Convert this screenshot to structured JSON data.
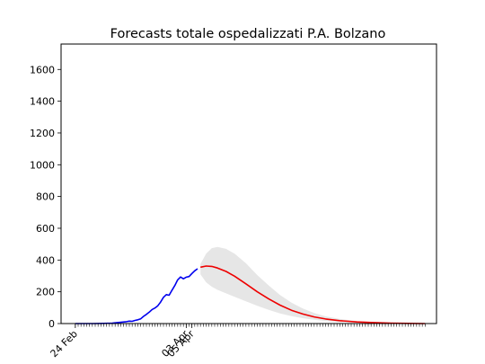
{
  "chart_data": {
    "type": "line",
    "title": "Forecasts totale ospedalizzati P.A. Bolzano",
    "xlabel": "",
    "ylabel": "",
    "x_range": [
      "2020-02-19",
      "2020-06-30"
    ],
    "ylim": [
      0,
      1760
    ],
    "yticks": [
      0,
      200,
      400,
      600,
      800,
      1000,
      1200,
      1400,
      1600
    ],
    "xtick_labels": [
      {
        "date": "2020-02-24",
        "label": "24 Feb"
      },
      {
        "date": "2020-04-03",
        "label": "03 Apr"
      },
      {
        "date": "2020-04-05",
        "label": "05 Apr"
      }
    ],
    "minor_tick_range": [
      "2020-02-24",
      "2020-06-26"
    ],
    "grid": false,
    "legend": "none",
    "colors": {
      "observed": "#0000ee",
      "forecast": "#ee0000",
      "band": "#e6e6e6"
    },
    "series": [
      {
        "role": "observed",
        "points": [
          [
            "2020-02-24",
            0
          ],
          [
            "2020-03-01",
            0
          ],
          [
            "2020-03-05",
            1
          ],
          [
            "2020-03-08",
            3
          ],
          [
            "2020-03-11",
            8
          ],
          [
            "2020-03-13",
            12
          ],
          [
            "2020-03-14",
            15
          ],
          [
            "2020-03-15",
            14
          ],
          [
            "2020-03-16",
            20
          ],
          [
            "2020-03-17",
            24
          ],
          [
            "2020-03-18",
            30
          ],
          [
            "2020-03-19",
            45
          ],
          [
            "2020-03-20",
            58
          ],
          [
            "2020-03-21",
            72
          ],
          [
            "2020-03-22",
            88
          ],
          [
            "2020-03-23",
            98
          ],
          [
            "2020-03-24",
            112
          ],
          [
            "2020-03-25",
            135
          ],
          [
            "2020-03-26",
            165
          ],
          [
            "2020-03-27",
            182
          ],
          [
            "2020-03-28",
            178
          ],
          [
            "2020-03-29",
            210
          ],
          [
            "2020-03-30",
            240
          ],
          [
            "2020-03-31",
            275
          ],
          [
            "2020-04-01",
            293
          ],
          [
            "2020-04-02",
            282
          ],
          [
            "2020-04-03",
            292
          ],
          [
            "2020-04-04",
            296
          ],
          [
            "2020-04-05",
            315
          ],
          [
            "2020-04-06",
            332
          ],
          [
            "2020-04-07",
            345
          ]
        ]
      },
      {
        "role": "forecast",
        "points": [
          [
            "2020-04-08",
            355
          ],
          [
            "2020-04-10",
            362
          ],
          [
            "2020-04-12",
            360
          ],
          [
            "2020-04-14",
            350
          ],
          [
            "2020-04-17",
            328
          ],
          [
            "2020-04-20",
            298
          ],
          [
            "2020-04-24",
            250
          ],
          [
            "2020-04-28",
            200
          ],
          [
            "2020-05-02",
            155
          ],
          [
            "2020-05-06",
            116
          ],
          [
            "2020-05-10",
            84
          ],
          [
            "2020-05-14",
            60
          ],
          [
            "2020-05-18",
            42
          ],
          [
            "2020-05-22",
            29
          ],
          [
            "2020-05-27",
            18
          ],
          [
            "2020-06-02",
            10
          ],
          [
            "2020-06-08",
            6
          ],
          [
            "2020-06-14",
            3
          ],
          [
            "2020-06-20",
            1
          ],
          [
            "2020-06-26",
            0
          ]
        ]
      }
    ],
    "band": {
      "upper": [
        [
          "2020-04-08",
          375
        ],
        [
          "2020-04-10",
          440
        ],
        [
          "2020-04-12",
          475
        ],
        [
          "2020-04-14",
          482
        ],
        [
          "2020-04-17",
          470
        ],
        [
          "2020-04-20",
          440
        ],
        [
          "2020-04-24",
          380
        ],
        [
          "2020-04-28",
          305
        ],
        [
          "2020-05-02",
          240
        ],
        [
          "2020-05-06",
          180
        ],
        [
          "2020-05-10",
          132
        ],
        [
          "2020-05-14",
          95
        ],
        [
          "2020-05-18",
          66
        ],
        [
          "2020-05-22",
          45
        ],
        [
          "2020-05-27",
          29
        ],
        [
          "2020-06-02",
          16
        ],
        [
          "2020-06-08",
          9
        ],
        [
          "2020-06-14",
          4
        ],
        [
          "2020-06-20",
          2
        ],
        [
          "2020-06-26",
          0
        ]
      ],
      "lower": [
        [
          "2020-04-08",
          310
        ],
        [
          "2020-04-10",
          260
        ],
        [
          "2020-04-12",
          232
        ],
        [
          "2020-04-14",
          212
        ],
        [
          "2020-04-17",
          190
        ],
        [
          "2020-04-20",
          168
        ],
        [
          "2020-04-24",
          140
        ],
        [
          "2020-04-28",
          112
        ],
        [
          "2020-05-02",
          86
        ],
        [
          "2020-05-06",
          64
        ],
        [
          "2020-05-10",
          47
        ],
        [
          "2020-05-14",
          34
        ],
        [
          "2020-05-18",
          24
        ],
        [
          "2020-05-22",
          16
        ],
        [
          "2020-05-27",
          10
        ],
        [
          "2020-06-02",
          6
        ],
        [
          "2020-06-08",
          3
        ],
        [
          "2020-06-14",
          1
        ],
        [
          "2020-06-20",
          0
        ],
        [
          "2020-06-26",
          0
        ]
      ]
    }
  }
}
